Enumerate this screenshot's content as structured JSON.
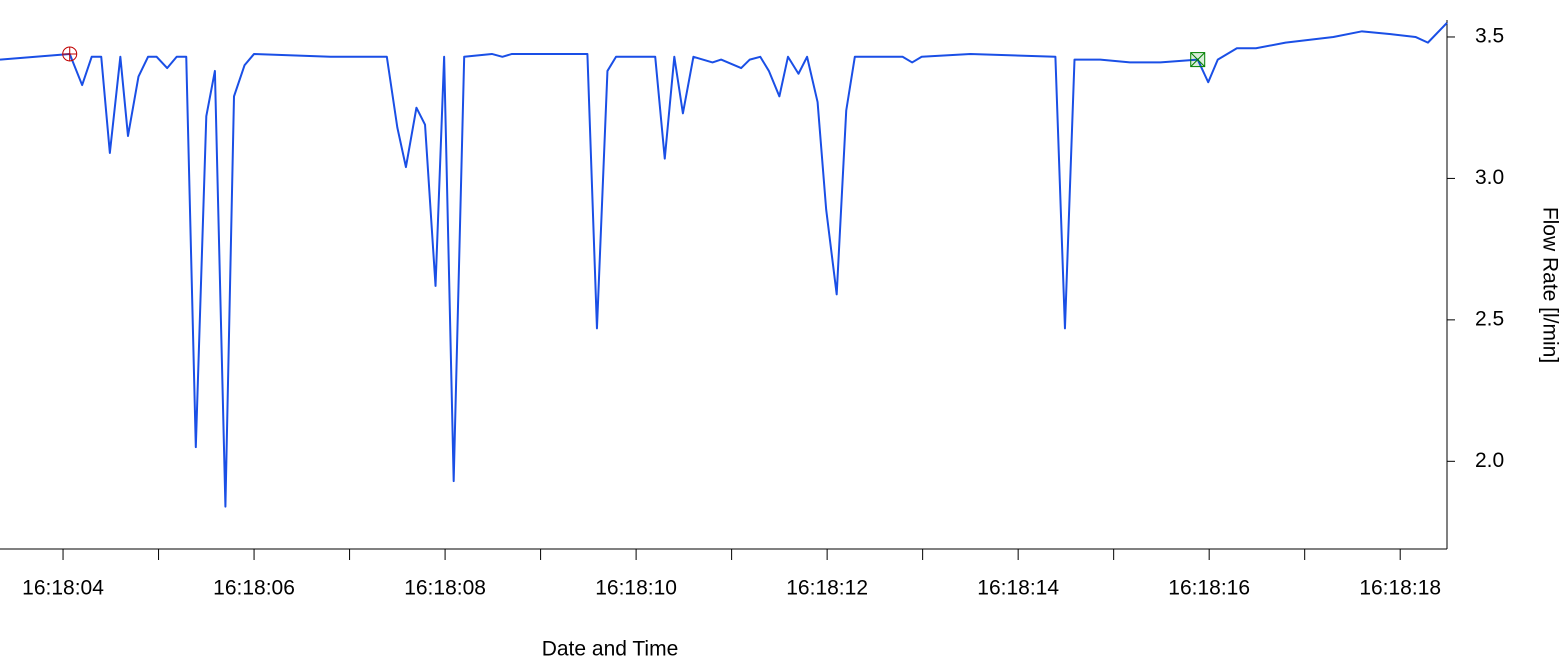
{
  "chart_data": {
    "type": "line",
    "x_label": "Date and Time",
    "y_label": "Flow Rate [l/min]",
    "xlim": [
      3.34,
      18.49
    ],
    "ylim": [
      1.69,
      3.56
    ],
    "xticks": [
      {
        "value": 4,
        "label": "16:18:04"
      },
      {
        "value": 6,
        "label": "16:18:06"
      },
      {
        "value": 8,
        "label": "16:18:08"
      },
      {
        "value": 10,
        "label": "16:18:10"
      },
      {
        "value": 12,
        "label": "16:18:12"
      },
      {
        "value": 14,
        "label": "16:18:14"
      },
      {
        "value": 16,
        "label": "16:18:16"
      },
      {
        "value": 18,
        "label": "16:18:18"
      }
    ],
    "xminorticks": [
      5,
      7,
      9,
      11,
      13,
      15,
      17
    ],
    "yticks": [
      {
        "value": 2,
        "label": "2.0"
      },
      2.5,
      {
        "value": 3,
        "label": "3.0"
      },
      3.5
    ],
    "x": [
      3.34,
      4.07,
      4.2,
      4.3,
      4.4,
      4.49,
      4.6,
      4.68,
      4.79,
      4.89,
      4.98,
      5.09,
      5.19,
      5.29,
      5.39,
      5.5,
      5.59,
      5.7,
      5.79,
      5.9,
      6.0,
      6.8,
      7.39,
      7.5,
      7.59,
      7.7,
      7.79,
      7.9,
      7.99,
      8.09,
      8.2,
      8.49,
      8.6,
      8.7,
      9.49,
      9.59,
      9.7,
      9.79,
      10.2,
      10.3,
      10.4,
      10.49,
      10.6,
      10.8,
      10.89,
      11.1,
      11.19,
      11.3,
      11.39,
      11.5,
      11.59,
      11.7,
      11.79,
      11.9,
      11.99,
      12.1,
      12.2,
      12.29,
      12.79,
      12.89,
      12.99,
      13.5,
      14.39,
      14.49,
      14.59,
      14.86,
      15.17,
      15.49,
      15.88,
      15.99,
      16.09,
      16.29,
      16.49,
      16.8,
      17.3,
      17.6,
      17.9,
      18.16,
      18.29,
      18.49
    ],
    "series": [
      {
        "color": "#1a4fe6",
        "values": [
          3.42,
          3.44,
          3.33,
          3.43,
          3.43,
          3.09,
          3.43,
          3.15,
          3.36,
          3.43,
          3.43,
          3.39,
          3.43,
          3.43,
          2.05,
          3.22,
          3.38,
          1.84,
          3.29,
          3.4,
          3.44,
          3.43,
          3.43,
          3.18,
          3.04,
          3.25,
          3.19,
          2.62,
          3.43,
          1.93,
          3.43,
          3.44,
          3.43,
          3.44,
          3.44,
          2.47,
          3.38,
          3.43,
          3.43,
          3.07,
          3.43,
          3.23,
          3.43,
          3.41,
          3.42,
          3.39,
          3.42,
          3.43,
          3.38,
          3.29,
          3.43,
          3.37,
          3.43,
          3.27,
          2.89,
          2.59,
          3.24,
          3.43,
          3.43,
          3.41,
          3.43,
          3.44,
          3.43,
          2.47,
          3.42,
          3.42,
          3.41,
          3.41,
          3.42,
          3.34,
          3.42,
          3.46,
          3.46,
          3.48,
          3.5,
          3.52,
          3.51,
          3.5,
          3.48,
          3.55
        ]
      }
    ],
    "cursors": [
      {
        "x": 4.07,
        "y": 3.44,
        "color": "#c00000"
      },
      {
        "x": 15.88,
        "y": 3.42,
        "color": "#008000"
      }
    ]
  }
}
